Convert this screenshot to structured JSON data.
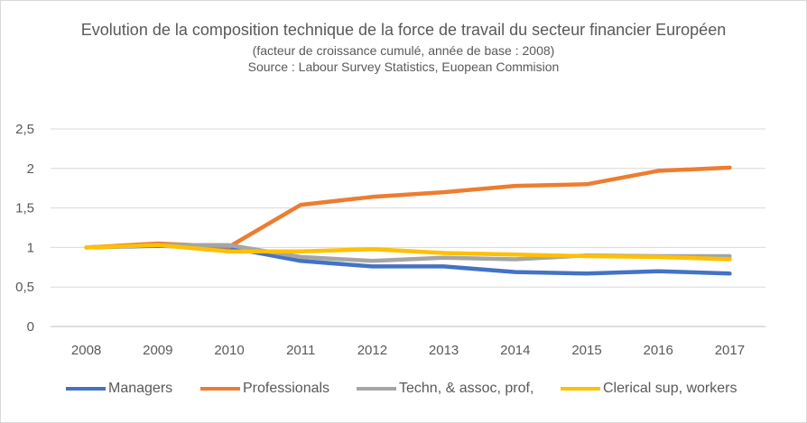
{
  "chart_data": {
    "type": "line",
    "title": "Evolution de la composition technique de la force de travail du secteur financier Européen",
    "subtitle": "(facteur de croissance cumulé, année de base : 2008)",
    "source": "Source : Labour Survey Statistics, Euopean Commision",
    "categories": [
      "2008",
      "2009",
      "2010",
      "2011",
      "2012",
      "2013",
      "2014",
      "2015",
      "2016",
      "2017"
    ],
    "y_ticks": [
      "0",
      "0,5",
      "1",
      "1,5",
      "2",
      "2,5"
    ],
    "ylim": [
      0,
      2.5
    ],
    "grid": true,
    "legend_position": "bottom",
    "series": [
      {
        "name": "Managers",
        "color": "#4472C4",
        "values": [
          1.0,
          1.02,
          1.0,
          0.83,
          0.76,
          0.76,
          0.69,
          0.67,
          0.7,
          0.67
        ]
      },
      {
        "name": "Professionals",
        "color": "#ED7D31",
        "values": [
          1.0,
          1.05,
          1.01,
          1.54,
          1.64,
          1.7,
          1.78,
          1.8,
          1.97,
          2.01
        ]
      },
      {
        "name": "Techn, & assoc, prof,",
        "color": "#A5A5A5",
        "values": [
          1.0,
          1.03,
          1.03,
          0.88,
          0.83,
          0.87,
          0.85,
          0.9,
          0.89,
          0.89
        ]
      },
      {
        "name": "Clerical sup, workers",
        "color": "#FFC000",
        "values": [
          1.0,
          1.03,
          0.95,
          0.95,
          0.98,
          0.93,
          0.91,
          0.89,
          0.88,
          0.85
        ]
      }
    ]
  }
}
